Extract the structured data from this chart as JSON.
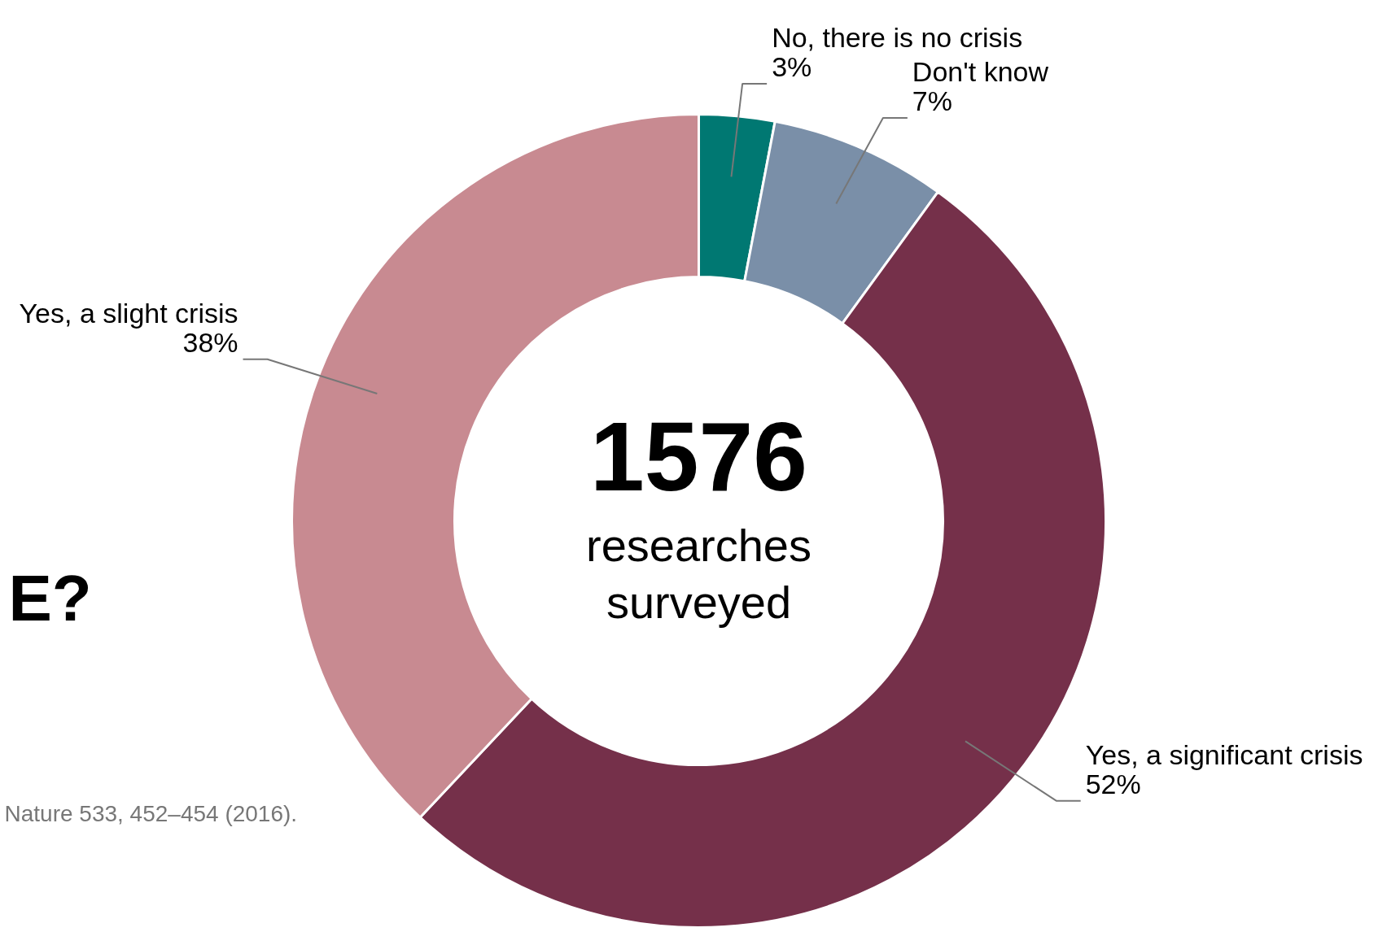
{
  "chart_data": {
    "type": "donut",
    "categories": [
      "No, there is no crisis",
      "Don't know",
      "Yes, a significant crisis",
      "Yes, a slight crisis"
    ],
    "values": [
      3,
      7,
      52,
      38
    ],
    "colors": [
      "#007872",
      "#7a8fa8",
      "#75304a",
      "#c88a91"
    ],
    "value_labels": [
      "3%",
      "7%",
      "52%",
      "38%"
    ],
    "annotations": [
      "1576",
      "researches surveyed",
      "E?",
      "Nature 533, 452–454 (2016)."
    ]
  }
}
